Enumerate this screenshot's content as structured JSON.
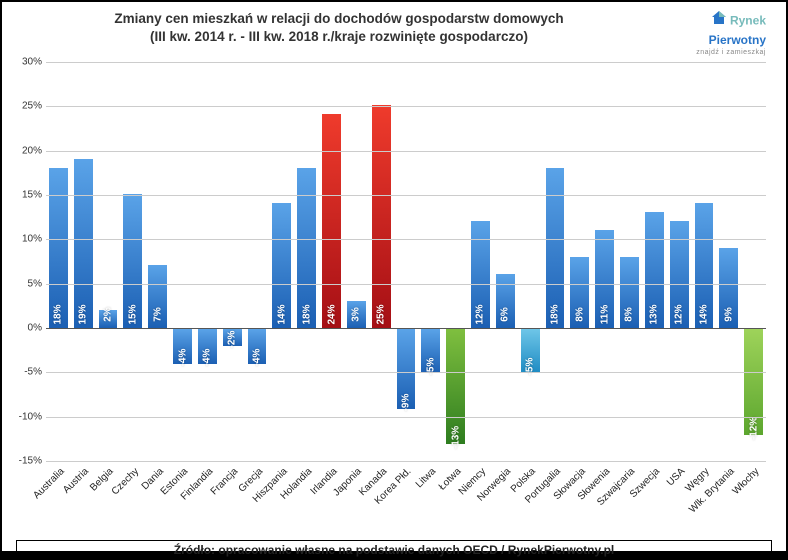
{
  "title_line1": "Zmiany cen mieszkań w relacji do dochodów gospodarstw domowych",
  "title_line2": "(III kw. 2014 r. - III kw. 2018 r./kraje rozwinięte gospodarczo)",
  "logo": {
    "word1": "Rynek",
    "word2": "Pierwotny",
    "tagline": "znajdź i zamieszkaj"
  },
  "source": "Źródło: opracowanie własne na podstawie danych OECD / RynekPierwotny.pl",
  "chart": {
    "type": "bar",
    "ylim": [
      -15,
      30
    ],
    "ytick_step": 5,
    "ytick_format_pct": true,
    "ylabel_fontsize": 10,
    "background_color": "#ffffff",
    "grid_color": "#cccccc",
    "zero_line_color": "#555555",
    "default_bar_gradient": [
      "#5aa3e8",
      "#1b5fb3"
    ],
    "label_fontsize": 10,
    "label_color": "#ffffff",
    "data": [
      {
        "name": "Australia",
        "value": 18,
        "label": "18%"
      },
      {
        "name": "Austria",
        "value": 19,
        "label": "19%"
      },
      {
        "name": "Belgia",
        "value": 2,
        "label": "2%"
      },
      {
        "name": "Czechy",
        "value": 15,
        "label": "15%"
      },
      {
        "name": "Dania",
        "value": 7,
        "label": "7%"
      },
      {
        "name": "Estonia",
        "value": -4,
        "label": "-4%"
      },
      {
        "name": "Finlandia",
        "value": -4,
        "label": "-4%"
      },
      {
        "name": "Francja",
        "value": -2,
        "label": "-2%"
      },
      {
        "name": "Grecja",
        "value": -4,
        "label": "-4%"
      },
      {
        "name": "Hiszpania",
        "value": 14,
        "label": "14%"
      },
      {
        "name": "Holandia",
        "value": 18,
        "label": "18%"
      },
      {
        "name": "Irlandia",
        "value": 24,
        "label": "24%",
        "gradient": [
          "#ef3b2c",
          "#a50f15"
        ]
      },
      {
        "name": "Japonia",
        "value": 3,
        "label": "3%"
      },
      {
        "name": "Kanada",
        "value": 25,
        "label": "25%",
        "gradient": [
          "#ef3b2c",
          "#a50f15"
        ]
      },
      {
        "name": "Korea Płd.",
        "value": -9,
        "label": "-9%"
      },
      {
        "name": "Litwa",
        "value": -5,
        "label": "-5%"
      },
      {
        "name": "Łotwa",
        "value": -13,
        "label": "-13%",
        "gradient": [
          "#7fbf3f",
          "#2e7d1f"
        ]
      },
      {
        "name": "Niemcy",
        "value": 12,
        "label": "12%"
      },
      {
        "name": "Norwegia",
        "value": 6,
        "label": "6%"
      },
      {
        "name": "Polska",
        "value": -5,
        "label": "-5%",
        "gradient": [
          "#6ec6e8",
          "#1e8bc3"
        ]
      },
      {
        "name": "Portugalia",
        "value": 18,
        "label": "18%"
      },
      {
        "name": "Słowacja",
        "value": 8,
        "label": "8%"
      },
      {
        "name": "Słowenia",
        "value": 11,
        "label": "11%"
      },
      {
        "name": "Szwajcaria",
        "value": 8,
        "label": "8%"
      },
      {
        "name": "Szwecja",
        "value": 13,
        "label": "13%"
      },
      {
        "name": "USA",
        "value": 12,
        "label": "12%"
      },
      {
        "name": "Węgry",
        "value": 14,
        "label": "14%"
      },
      {
        "name": "Wlk. Brytania",
        "value": 9,
        "label": "9%"
      },
      {
        "name": "Włochy",
        "value": -12,
        "label": "-12%",
        "gradient": [
          "#9ed35a",
          "#5ca62e"
        ]
      }
    ]
  }
}
